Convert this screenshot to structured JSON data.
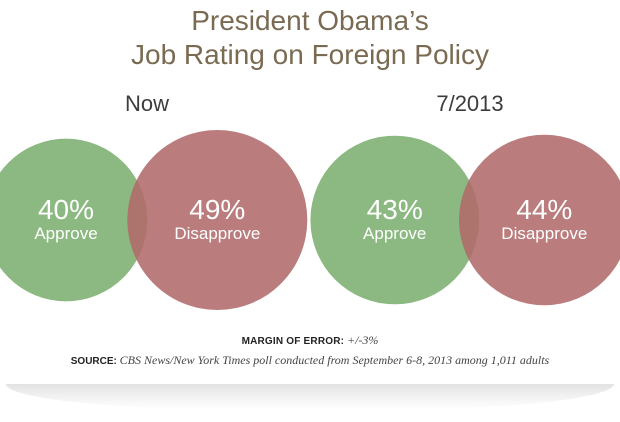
{
  "title_line1": "President Obama’s",
  "title_line2": "Job Rating on Foreign Policy",
  "colors": {
    "approve": "#85b57a",
    "disapprove": "#b06a6a",
    "title": "#7a6a52"
  },
  "chart_data": {
    "type": "bubble",
    "title": "President Obama’s Job Rating on Foreign Policy",
    "categories": [
      "Approve",
      "Disapprove"
    ],
    "groups": [
      {
        "label": "Now",
        "values": [
          40,
          49
        ],
        "value_labels": [
          "40%",
          "49%"
        ]
      },
      {
        "label": "7/2013",
        "values": [
          43,
          44
        ],
        "value_labels": [
          "43%",
          "44%"
        ]
      }
    ]
  },
  "margin_label": "MARGIN OF ERROR:",
  "margin_value": "+/-3%",
  "source_label": "SOURCE:",
  "source_text": "CBS News/New York Times poll conducted from September 6-8, 2013 among 1,011 adults"
}
